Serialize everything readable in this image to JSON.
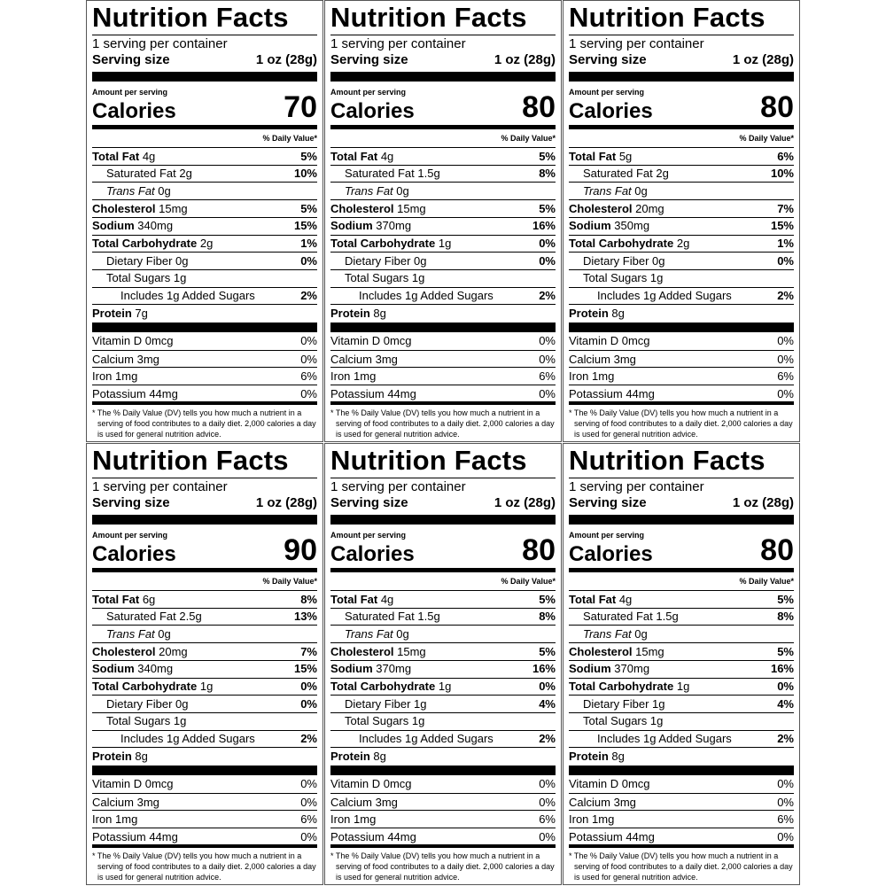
{
  "labels": [
    {
      "title": "Nutrition Facts",
      "servings": "1 serving per container",
      "serving_size_label": "Serving size",
      "serving_size": "1 oz (28g)",
      "amount_per_serving": "Amount per serving",
      "calories_label": "Calories",
      "calories": "70",
      "dv_header": "% Daily Value*",
      "nutrients": [
        {
          "name": "Total Fat",
          "amount": "4g",
          "dv": "5%"
        },
        {
          "name": "Saturated Fat",
          "amount": "2g",
          "dv": "10%"
        },
        {
          "name": "Trans Fat",
          "amount": "0g"
        },
        {
          "name": "Cholesterol",
          "amount": "15mg",
          "dv": "5%"
        },
        {
          "name": "Sodium",
          "amount": "340mg",
          "dv": "15%"
        },
        {
          "name": "Total Carbohydrate",
          "amount": "2g",
          "dv": "1%"
        },
        {
          "name": "Dietary Fiber",
          "amount": "0g",
          "dv": "0%"
        },
        {
          "name": "Total Sugars",
          "amount": "1g"
        },
        {
          "name": "Includes 1g Added Sugars",
          "dv": "2%"
        },
        {
          "name": "Protein",
          "amount": "7g"
        }
      ],
      "vitamins": [
        {
          "name": "Vitamin D",
          "amount": "0mcg",
          "dv": "0%"
        },
        {
          "name": "Calcium",
          "amount": "3mg",
          "dv": "0%"
        },
        {
          "name": "Iron",
          "amount": "1mg",
          "dv": "6%"
        },
        {
          "name": "Potassium",
          "amount": "44mg",
          "dv": "0%"
        }
      ],
      "footnote": "* The % Daily Value (DV) tells you how much a nutrient in a serving of food contributes to a daily diet. 2,000 calories a day is used for general nutrition advice."
    },
    {
      "title": "Nutrition Facts",
      "servings": "1 serving per container",
      "serving_size_label": "Serving size",
      "serving_size": "1 oz (28g)",
      "amount_per_serving": "Amount per serving",
      "calories_label": "Calories",
      "calories": "80",
      "dv_header": "% Daily Value*",
      "nutrients": [
        {
          "name": "Total Fat",
          "amount": "4g",
          "dv": "5%"
        },
        {
          "name": "Saturated Fat",
          "amount": "1.5g",
          "dv": "8%"
        },
        {
          "name": "Trans Fat",
          "amount": "0g"
        },
        {
          "name": "Cholesterol",
          "amount": "15mg",
          "dv": "5%"
        },
        {
          "name": "Sodium",
          "amount": "370mg",
          "dv": "16%"
        },
        {
          "name": "Total Carbohydrate",
          "amount": "1g",
          "dv": "0%"
        },
        {
          "name": "Dietary Fiber",
          "amount": "0g",
          "dv": "0%"
        },
        {
          "name": "Total Sugars",
          "amount": "1g"
        },
        {
          "name": "Includes 1g Added Sugars",
          "dv": "2%"
        },
        {
          "name": "Protein",
          "amount": "8g"
        }
      ],
      "vitamins": [
        {
          "name": "Vitamin D",
          "amount": "0mcg",
          "dv": "0%"
        },
        {
          "name": "Calcium",
          "amount": "3mg",
          "dv": "0%"
        },
        {
          "name": "Iron",
          "amount": "1mg",
          "dv": "6%"
        },
        {
          "name": "Potassium",
          "amount": "44mg",
          "dv": "0%"
        }
      ],
      "footnote": "* The % Daily Value (DV) tells you how much a nutrient in a serving of food contributes to a daily diet. 2,000 calories a day is used for general nutrition advice."
    },
    {
      "title": "Nutrition Facts",
      "servings": "1 serving per container",
      "serving_size_label": "Serving size",
      "serving_size": "1 oz (28g)",
      "amount_per_serving": "Amount per serving",
      "calories_label": "Calories",
      "calories": "80",
      "dv_header": "% Daily Value*",
      "nutrients": [
        {
          "name": "Total Fat",
          "amount": "5g",
          "dv": "6%"
        },
        {
          "name": "Saturated Fat",
          "amount": "2g",
          "dv": "10%"
        },
        {
          "name": "Trans Fat",
          "amount": "0g"
        },
        {
          "name": "Cholesterol",
          "amount": "20mg",
          "dv": "7%"
        },
        {
          "name": "Sodium",
          "amount": "350mg",
          "dv": "15%"
        },
        {
          "name": "Total Carbohydrate",
          "amount": "2g",
          "dv": "1%"
        },
        {
          "name": "Dietary Fiber",
          "amount": "0g",
          "dv": "0%"
        },
        {
          "name": "Total Sugars",
          "amount": "1g"
        },
        {
          "name": "Includes 1g Added Sugars",
          "dv": "2%"
        },
        {
          "name": "Protein",
          "amount": "8g"
        }
      ],
      "vitamins": [
        {
          "name": "Vitamin D",
          "amount": "0mcg",
          "dv": "0%"
        },
        {
          "name": "Calcium",
          "amount": "3mg",
          "dv": "0%"
        },
        {
          "name": "Iron",
          "amount": "1mg",
          "dv": "6%"
        },
        {
          "name": "Potassium",
          "amount": "44mg",
          "dv": "0%"
        }
      ],
      "footnote": "* The % Daily Value (DV) tells you how much a nutrient in a serving of food contributes to a daily diet. 2,000 calories a day is used for general nutrition advice."
    },
    {
      "title": "Nutrition Facts",
      "servings": "1 serving per container",
      "serving_size_label": "Serving size",
      "serving_size": "1 oz (28g)",
      "amount_per_serving": "Amount per serving",
      "calories_label": "Calories",
      "calories": "90",
      "dv_header": "% Daily Value*",
      "nutrients": [
        {
          "name": "Total Fat",
          "amount": "6g",
          "dv": "8%"
        },
        {
          "name": "Saturated Fat",
          "amount": "2.5g",
          "dv": "13%"
        },
        {
          "name": "Trans Fat",
          "amount": "0g"
        },
        {
          "name": "Cholesterol",
          "amount": "20mg",
          "dv": "7%"
        },
        {
          "name": "Sodium",
          "amount": "340mg",
          "dv": "15%"
        },
        {
          "name": "Total Carbohydrate",
          "amount": "1g",
          "dv": "0%"
        },
        {
          "name": "Dietary Fiber",
          "amount": "0g",
          "dv": "0%"
        },
        {
          "name": "Total Sugars",
          "amount": "1g"
        },
        {
          "name": "Includes 1g Added Sugars",
          "dv": "2%"
        },
        {
          "name": "Protein",
          "amount": "8g"
        }
      ],
      "vitamins": [
        {
          "name": "Vitamin D",
          "amount": "0mcg",
          "dv": "0%"
        },
        {
          "name": "Calcium",
          "amount": "3mg",
          "dv": "0%"
        },
        {
          "name": "Iron",
          "amount": "1mg",
          "dv": "6%"
        },
        {
          "name": "Potassium",
          "amount": "44mg",
          "dv": "0%"
        }
      ],
      "footnote": "* The % Daily Value (DV) tells you how much a nutrient in a serving of food contributes to a daily diet. 2,000 calories a day is used for general nutrition advice."
    },
    {
      "title": "Nutrition Facts",
      "servings": "1 serving per container",
      "serving_size_label": "Serving size",
      "serving_size": "1 oz (28g)",
      "amount_per_serving": "Amount per serving",
      "calories_label": "Calories",
      "calories": "80",
      "dv_header": "% Daily Value*",
      "nutrients": [
        {
          "name": "Total Fat",
          "amount": "4g",
          "dv": "5%"
        },
        {
          "name": "Saturated Fat",
          "amount": "1.5g",
          "dv": "8%"
        },
        {
          "name": "Trans Fat",
          "amount": "0g"
        },
        {
          "name": "Cholesterol",
          "amount": "15mg",
          "dv": "5%"
        },
        {
          "name": "Sodium",
          "amount": "370mg",
          "dv": "16%"
        },
        {
          "name": "Total Carbohydrate",
          "amount": "1g",
          "dv": "0%"
        },
        {
          "name": "Dietary Fiber",
          "amount": "1g",
          "dv": "4%"
        },
        {
          "name": "Total Sugars",
          "amount": "1g"
        },
        {
          "name": "Includes 1g Added Sugars",
          "dv": "2%"
        },
        {
          "name": "Protein",
          "amount": "8g"
        }
      ],
      "vitamins": [
        {
          "name": "Vitamin D",
          "amount": "0mcg",
          "dv": "0%"
        },
        {
          "name": "Calcium",
          "amount": "3mg",
          "dv": "0%"
        },
        {
          "name": "Iron",
          "amount": "1mg",
          "dv": "6%"
        },
        {
          "name": "Potassium",
          "amount": "44mg",
          "dv": "0%"
        }
      ],
      "footnote": "* The % Daily Value (DV) tells you how much a nutrient in a serving of food contributes to a daily diet. 2,000 calories a day is used for general nutrition advice."
    },
    {
      "title": "Nutrition Facts",
      "servings": "1 serving per container",
      "serving_size_label": "Serving size",
      "serving_size": "1 oz (28g)",
      "amount_per_serving": "Amount per serving",
      "calories_label": "Calories",
      "calories": "80",
      "dv_header": "% Daily Value*",
      "nutrients": [
        {
          "name": "Total Fat",
          "amount": "4g",
          "dv": "5%"
        },
        {
          "name": "Saturated Fat",
          "amount": "1.5g",
          "dv": "8%"
        },
        {
          "name": "Trans Fat",
          "amount": "0g"
        },
        {
          "name": "Cholesterol",
          "amount": "15mg",
          "dv": "5%"
        },
        {
          "name": "Sodium",
          "amount": "370mg",
          "dv": "16%"
        },
        {
          "name": "Total Carbohydrate",
          "amount": "1g",
          "dv": "0%"
        },
        {
          "name": "Dietary Fiber",
          "amount": "1g",
          "dv": "4%"
        },
        {
          "name": "Total Sugars",
          "amount": "1g"
        },
        {
          "name": "Includes 1g Added Sugars",
          "dv": "2%"
        },
        {
          "name": "Protein",
          "amount": "8g"
        }
      ],
      "vitamins": [
        {
          "name": "Vitamin D",
          "amount": "0mcg",
          "dv": "0%"
        },
        {
          "name": "Calcium",
          "amount": "3mg",
          "dv": "0%"
        },
        {
          "name": "Iron",
          "amount": "1mg",
          "dv": "6%"
        },
        {
          "name": "Potassium",
          "amount": "44mg",
          "dv": "0%"
        }
      ],
      "footnote": "* The % Daily Value (DV) tells you how much a nutrient in a serving of food contributes to a daily diet. 2,000 calories a day is used for general nutrition advice."
    }
  ]
}
